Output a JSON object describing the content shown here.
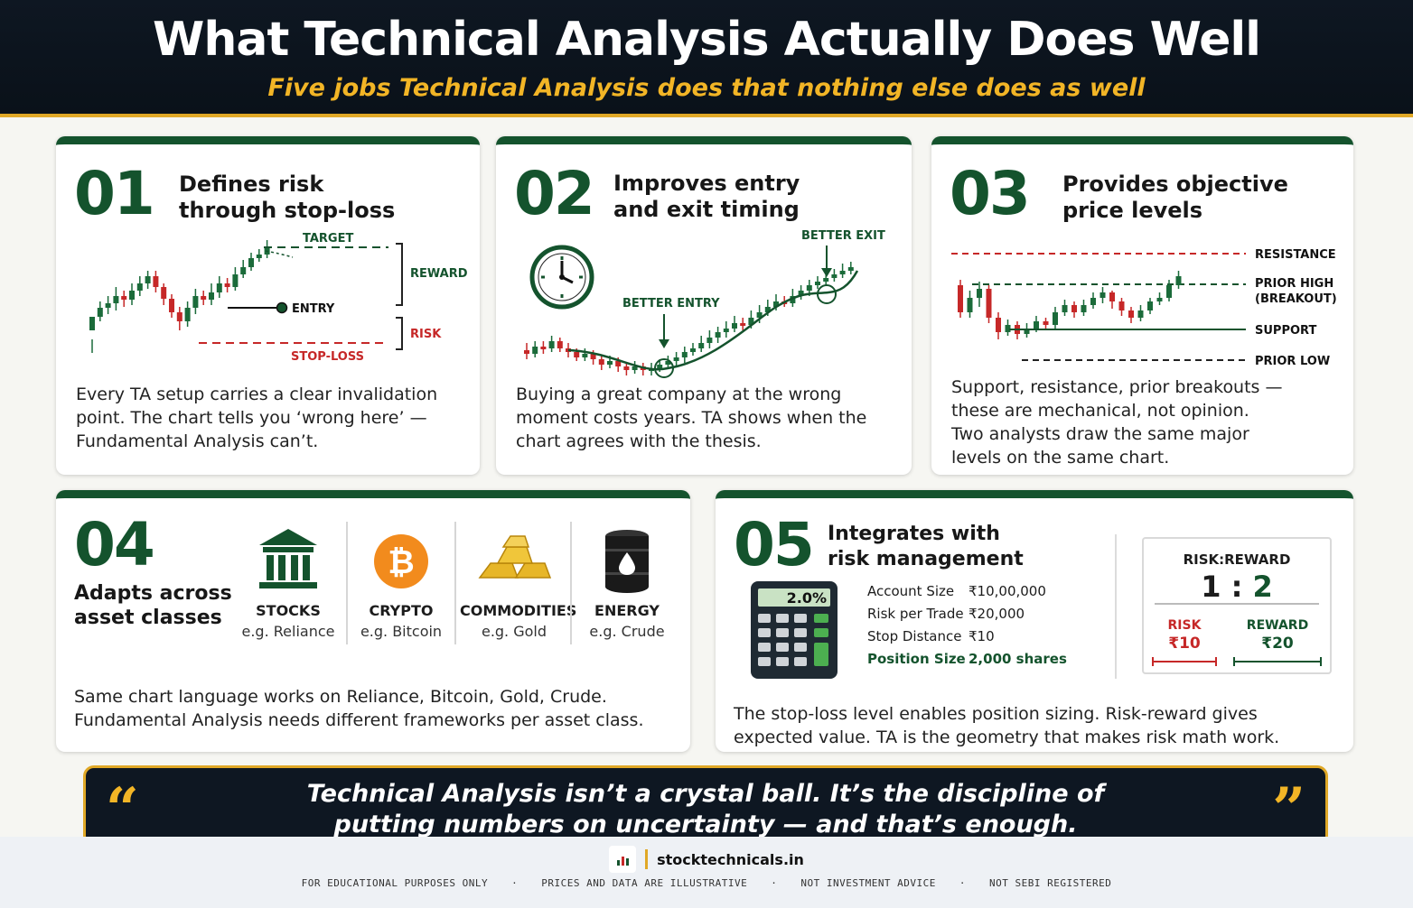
{
  "header": {
    "title": "What Technical Analysis Actually Does Well",
    "subtitle": "Five jobs Technical Analysis does that nothing else does as well"
  },
  "colors": {
    "green": "#14532d",
    "red": "#c62828",
    "gold": "#e0a826",
    "navy": "#0e1722"
  },
  "cards": [
    {
      "number": "01",
      "title": "Defines risk\nthrough stop-loss",
      "chart_labels": {
        "target": "TARGET",
        "reward": "REWARD",
        "entry": "ENTRY",
        "risk": "RISK",
        "stop_loss": "STOP-LOSS"
      },
      "body": "Every TA setup carries a clear invalidation point. The chart tells you ‘wrong here’ — Fundamental Analysis can’t."
    },
    {
      "number": "02",
      "title": "Improves entry\nand exit timing",
      "chart_labels": {
        "better_exit": "BETTER EXIT",
        "better_entry": "BETTER ENTRY"
      },
      "icon": "clock-icon",
      "body": "Buying a great company at the wrong moment costs years. TA shows when the chart agrees with the thesis."
    },
    {
      "number": "03",
      "title": "Provides objective\nprice levels",
      "chart_labels": {
        "resistance": "RESISTANCE",
        "prior_high_1": "PRIOR HIGH",
        "prior_high_2": "(BREAKOUT)",
        "support": "SUPPORT",
        "prior_low": "PRIOR LOW"
      },
      "body": "Support, resistance, prior breakouts — these are mechanical, not opinion. Two analysts draw the same major levels on the same chart."
    },
    {
      "number": "04",
      "title": "Adapts across\nasset classes",
      "assets": [
        {
          "icon": "bank-icon",
          "name": "STOCKS",
          "example": "e.g. Reliance"
        },
        {
          "icon": "bitcoin-icon",
          "name": "CRYPTO",
          "example": "e.g. Bitcoin"
        },
        {
          "icon": "gold-bars-icon",
          "name": "COMMODITIES",
          "example": "e.g. Gold"
        },
        {
          "icon": "oil-barrel-icon",
          "name": "ENERGY",
          "example": "e.g. Crude"
        }
      ],
      "body_line1": "Same chart language works on Reliance, Bitcoin, Gold, Crude.",
      "body_line2": "Fundamental Analysis needs different frameworks per asset class."
    },
    {
      "number": "05",
      "title": "Integrates with\nrisk management",
      "calculator_display": "2.0%",
      "table": [
        {
          "label": "Account Size",
          "value": "₹10,00,000"
        },
        {
          "label": "Risk per Trade",
          "value": "₹20,000"
        },
        {
          "label": "Stop Distance",
          "value": "₹10"
        },
        {
          "label": "Position Size",
          "value": "2,000 shares"
        }
      ],
      "risk_reward": {
        "title": "RISK:REWARD",
        "ratio_left": "1",
        "ratio_sep": ":",
        "ratio_right": "2",
        "risk_label": "RISK",
        "risk_value": "₹10",
        "reward_label": "REWARD",
        "reward_value": "₹20"
      },
      "body_line1": "The stop-loss level enables position sizing. Risk-reward gives",
      "body_line2": "expected value. TA is the geometry that makes risk math work."
    }
  ],
  "quote": {
    "text": "Technical Analysis isn’t a crystal ball. It’s the discipline of\nputting numbers on uncertainty — and that’s enough.",
    "open_mark": "“",
    "close_mark": "”"
  },
  "footer": {
    "brand": "stocktechnicals.in",
    "disclaimers": [
      "FOR EDUCATIONAL PURPOSES ONLY",
      "PRICES AND DATA ARE ILLUSTRATIVE",
      "NOT INVESTMENT ADVICE",
      "NOT SEBI REGISTERED"
    ],
    "separator": "·"
  }
}
